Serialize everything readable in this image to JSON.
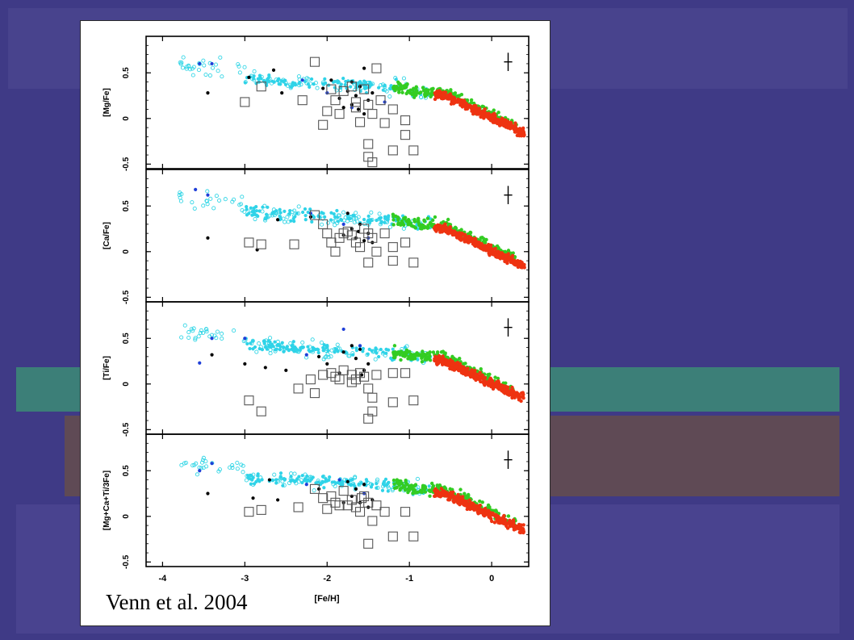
{
  "background_colors": {
    "top": "#4b468e",
    "main": "#3f3a86",
    "teal_band": "#3c7f78",
    "brown_band": "#5f4a55",
    "bottom": "#4a4590"
  },
  "caption": {
    "credit": "Venn et al. 2004"
  },
  "chart_data": {
    "type": "scatter",
    "xlabel": "[Fe/H]",
    "xlim": [
      -4.2,
      0.45
    ],
    "xticks": [
      -4,
      -3,
      -2,
      -1,
      0
    ],
    "xtick_labels": [
      "-4",
      "-3",
      "-2",
      "-1",
      "0"
    ],
    "grid": false,
    "legend": "none",
    "series_colors": {
      "cyan_open": "#33d6e6",
      "cyan_filled": "#2fd3e8",
      "green": "#33cc22",
      "red": "#ee3311",
      "black": "#000000",
      "blue": "#1f3fd8",
      "dwarf_squares": "#555555"
    },
    "panels": [
      {
        "ylabel": "[Mg/Fe]",
        "ylim": [
          -0.55,
          0.9
        ],
        "yticks": [
          -0.5,
          0,
          0.5
        ],
        "ytick_labels": [
          "-0.5",
          "0",
          "0.5"
        ],
        "errorbar": {
          "x": 0.2,
          "y": 0.62,
          "xerr": 0.05,
          "yerr": 0.1
        },
        "dwarf_stars": [
          {
            "x": -3.0,
            "y": 0.18
          },
          {
            "x": -2.8,
            "y": 0.35
          },
          {
            "x": -2.3,
            "y": 0.2
          },
          {
            "x": -2.15,
            "y": 0.62
          },
          {
            "x": -2.05,
            "y": -0.07
          },
          {
            "x": -1.95,
            "y": 0.32
          },
          {
            "x": -1.9,
            "y": 0.2
          },
          {
            "x": -1.85,
            "y": 0.05
          },
          {
            "x": -1.8,
            "y": 0.3
          },
          {
            "x": -1.7,
            "y": 0.35
          },
          {
            "x": -1.65,
            "y": 0.12
          },
          {
            "x": -1.6,
            "y": -0.04
          },
          {
            "x": -1.55,
            "y": 0.32
          },
          {
            "x": -1.5,
            "y": 0.15
          },
          {
            "x": -1.45,
            "y": 0.05
          },
          {
            "x": -1.4,
            "y": 0.55
          },
          {
            "x": -1.35,
            "y": 0.2
          },
          {
            "x": -1.3,
            "y": -0.05
          },
          {
            "x": -1.2,
            "y": 0.1
          },
          {
            "x": -1.05,
            "y": -0.02
          },
          {
            "x": -1.5,
            "y": -0.28
          },
          {
            "x": -1.5,
            "y": -0.42
          },
          {
            "x": -1.2,
            "y": -0.35
          },
          {
            "x": -0.95,
            "y": -0.35
          },
          {
            "x": -1.45,
            "y": -0.48
          },
          {
            "x": -1.05,
            "y": -0.18
          },
          {
            "x": -1.65,
            "y": 0.18
          },
          {
            "x": -2.0,
            "y": 0.08
          }
        ],
        "black_stars": [
          {
            "x": -3.45,
            "y": 0.28
          },
          {
            "x": -2.95,
            "y": 0.45
          },
          {
            "x": -2.65,
            "y": 0.53
          },
          {
            "x": -2.55,
            "y": 0.28
          },
          {
            "x": -2.05,
            "y": 0.33
          },
          {
            "x": -1.95,
            "y": 0.42
          },
          {
            "x": -1.85,
            "y": 0.22
          },
          {
            "x": -1.75,
            "y": 0.3
          },
          {
            "x": -1.7,
            "y": 0.15
          },
          {
            "x": -1.65,
            "y": 0.25
          },
          {
            "x": -1.62,
            "y": 0.1
          },
          {
            "x": -1.6,
            "y": 0.35
          },
          {
            "x": -1.55,
            "y": 0.05
          },
          {
            "x": -1.55,
            "y": 0.55
          },
          {
            "x": -1.5,
            "y": 0.2
          },
          {
            "x": -1.45,
            "y": 0.28
          },
          {
            "x": -1.8,
            "y": 0.12
          },
          {
            "x": -1.7,
            "y": 0.4
          }
        ],
        "blue_stars": [
          {
            "x": -3.55,
            "y": 0.6
          },
          {
            "x": -3.4,
            "y": 0.6
          },
          {
            "x": -2.3,
            "y": 0.42
          },
          {
            "x": -2.0,
            "y": 0.28
          },
          {
            "x": -1.7,
            "y": 0.12
          },
          {
            "x": -1.3,
            "y": 0.18
          }
        ]
      },
      {
        "ylabel": "[Ca/Fe]",
        "ylim": [
          -0.55,
          0.9
        ],
        "yticks": [
          -0.5,
          0,
          0.5
        ],
        "ytick_labels": [
          "-0.5",
          "0",
          "0.5"
        ],
        "errorbar": {
          "x": 0.2,
          "y": 0.62,
          "xerr": 0.05,
          "yerr": 0.1
        },
        "dwarf_stars": [
          {
            "x": -2.95,
            "y": 0.1
          },
          {
            "x": -2.8,
            "y": 0.08
          },
          {
            "x": -2.4,
            "y": 0.08
          },
          {
            "x": -2.15,
            "y": 0.4
          },
          {
            "x": -2.05,
            "y": 0.3
          },
          {
            "x": -2.0,
            "y": 0.2
          },
          {
            "x": -1.95,
            "y": 0.1
          },
          {
            "x": -1.85,
            "y": 0.15
          },
          {
            "x": -1.8,
            "y": 0.2
          },
          {
            "x": -1.7,
            "y": 0.18
          },
          {
            "x": -1.6,
            "y": 0.05
          },
          {
            "x": -1.55,
            "y": 0.25
          },
          {
            "x": -1.5,
            "y": 0.2
          },
          {
            "x": -1.45,
            "y": 0.15
          },
          {
            "x": -1.4,
            "y": 0.0
          },
          {
            "x": -1.3,
            "y": 0.2
          },
          {
            "x": -1.2,
            "y": 0.05
          },
          {
            "x": -1.05,
            "y": 0.1
          },
          {
            "x": -1.5,
            "y": -0.12
          },
          {
            "x": -1.2,
            "y": -0.1
          },
          {
            "x": -0.95,
            "y": -0.12
          },
          {
            "x": -1.9,
            "y": 0.0
          },
          {
            "x": -1.65,
            "y": 0.1
          },
          {
            "x": -1.75,
            "y": 0.22
          }
        ],
        "black_stars": [
          {
            "x": -3.45,
            "y": 0.15
          },
          {
            "x": -2.85,
            "y": 0.02
          },
          {
            "x": -2.6,
            "y": 0.35
          },
          {
            "x": -2.2,
            "y": 0.38
          },
          {
            "x": -1.75,
            "y": 0.42
          },
          {
            "x": -1.7,
            "y": 0.25
          },
          {
            "x": -1.65,
            "y": 0.15
          },
          {
            "x": -1.6,
            "y": 0.3
          },
          {
            "x": -1.55,
            "y": 0.12
          },
          {
            "x": -1.5,
            "y": 0.2
          },
          {
            "x": -1.45,
            "y": 0.1
          },
          {
            "x": -1.8,
            "y": 0.18
          },
          {
            "x": -1.62,
            "y": 0.22
          }
        ],
        "blue_stars": [
          {
            "x": -3.6,
            "y": 0.68
          },
          {
            "x": -3.45,
            "y": 0.62
          },
          {
            "x": -2.2,
            "y": 0.42
          },
          {
            "x": -1.8,
            "y": 0.3
          },
          {
            "x": -1.5,
            "y": 0.15
          }
        ]
      },
      {
        "ylabel": "[Ti/Fe]",
        "ylim": [
          -0.55,
          0.9
        ],
        "yticks": [
          -0.5,
          0,
          0.5
        ],
        "ytick_labels": [
          "-0.5",
          "0",
          "0.5"
        ],
        "errorbar": {
          "x": 0.2,
          "y": 0.62,
          "xerr": 0.05,
          "yerr": 0.1
        },
        "dwarf_stars": [
          {
            "x": -2.95,
            "y": -0.18
          },
          {
            "x": -2.8,
            "y": -0.3
          },
          {
            "x": -2.35,
            "y": -0.05
          },
          {
            "x": -2.2,
            "y": 0.05
          },
          {
            "x": -2.15,
            "y": -0.1
          },
          {
            "x": -2.05,
            "y": 0.1
          },
          {
            "x": -1.95,
            "y": 0.12
          },
          {
            "x": -1.9,
            "y": 0.08
          },
          {
            "x": -1.8,
            "y": 0.15
          },
          {
            "x": -1.7,
            "y": 0.1
          },
          {
            "x": -1.65,
            "y": 0.05
          },
          {
            "x": -1.6,
            "y": 0.12
          },
          {
            "x": -1.55,
            "y": 0.08
          },
          {
            "x": -1.5,
            "y": -0.05
          },
          {
            "x": -1.45,
            "y": -0.15
          },
          {
            "x": -1.45,
            "y": -0.3
          },
          {
            "x": -1.4,
            "y": 0.1
          },
          {
            "x": -1.2,
            "y": 0.12
          },
          {
            "x": -1.2,
            "y": -0.2
          },
          {
            "x": -1.05,
            "y": 0.12
          },
          {
            "x": -0.95,
            "y": -0.18
          },
          {
            "x": -1.5,
            "y": -0.38
          },
          {
            "x": -1.7,
            "y": 0.02
          },
          {
            "x": -1.85,
            "y": 0.05
          }
        ],
        "black_stars": [
          {
            "x": -3.4,
            "y": 0.32
          },
          {
            "x": -3.0,
            "y": 0.22
          },
          {
            "x": -2.75,
            "y": 0.18
          },
          {
            "x": -2.5,
            "y": 0.15
          },
          {
            "x": -2.1,
            "y": 0.3
          },
          {
            "x": -2.0,
            "y": 0.22
          },
          {
            "x": -1.8,
            "y": 0.35
          },
          {
            "x": -1.7,
            "y": 0.42
          },
          {
            "x": -1.65,
            "y": 0.28
          },
          {
            "x": -1.6,
            "y": 0.38
          },
          {
            "x": -1.55,
            "y": 0.15
          },
          {
            "x": -1.5,
            "y": 0.22
          },
          {
            "x": -1.58,
            "y": 0.1
          },
          {
            "x": -1.85,
            "y": 0.12
          }
        ],
        "blue_stars": [
          {
            "x": -3.55,
            "y": 0.23
          },
          {
            "x": -3.4,
            "y": 0.5
          },
          {
            "x": -3.0,
            "y": 0.5
          },
          {
            "x": -2.25,
            "y": 0.32
          },
          {
            "x": -1.8,
            "y": 0.6
          },
          {
            "x": -1.6,
            "y": 0.42
          }
        ]
      },
      {
        "ylabel": "[Mg+Ca+Ti/3Fe]",
        "ylim": [
          -0.55,
          0.9
        ],
        "yticks": [
          -0.5,
          0,
          0.5
        ],
        "ytick_labels": [
          "-0.5",
          "0",
          "0.5"
        ],
        "errorbar": {
          "x": 0.2,
          "y": 0.62,
          "xerr": 0.05,
          "yerr": 0.1
        },
        "dwarf_stars": [
          {
            "x": -2.95,
            "y": 0.05
          },
          {
            "x": -2.8,
            "y": 0.07
          },
          {
            "x": -2.35,
            "y": 0.1
          },
          {
            "x": -2.15,
            "y": 0.3
          },
          {
            "x": -2.05,
            "y": 0.2
          },
          {
            "x": -2.0,
            "y": 0.08
          },
          {
            "x": -1.95,
            "y": 0.22
          },
          {
            "x": -1.9,
            "y": 0.15
          },
          {
            "x": -1.85,
            "y": 0.12
          },
          {
            "x": -1.8,
            "y": 0.28
          },
          {
            "x": -1.7,
            "y": 0.18
          },
          {
            "x": -1.65,
            "y": 0.1
          },
          {
            "x": -1.6,
            "y": 0.05
          },
          {
            "x": -1.55,
            "y": 0.22
          },
          {
            "x": -1.5,
            "y": 0.15
          },
          {
            "x": -1.45,
            "y": -0.05
          },
          {
            "x": -1.4,
            "y": 0.12
          },
          {
            "x": -1.3,
            "y": 0.05
          },
          {
            "x": -1.2,
            "y": -0.22
          },
          {
            "x": -1.05,
            "y": 0.05
          },
          {
            "x": -0.95,
            "y": -0.22
          },
          {
            "x": -1.5,
            "y": -0.3
          },
          {
            "x": -1.75,
            "y": 0.12
          },
          {
            "x": -1.58,
            "y": 0.2
          }
        ],
        "black_stars": [
          {
            "x": -3.45,
            "y": 0.25
          },
          {
            "x": -2.9,
            "y": 0.2
          },
          {
            "x": -2.7,
            "y": 0.4
          },
          {
            "x": -2.6,
            "y": 0.18
          },
          {
            "x": -2.1,
            "y": 0.3
          },
          {
            "x": -1.75,
            "y": 0.38
          },
          {
            "x": -1.7,
            "y": 0.22
          },
          {
            "x": -1.65,
            "y": 0.3
          },
          {
            "x": -1.6,
            "y": 0.15
          },
          {
            "x": -1.55,
            "y": 0.35
          },
          {
            "x": -1.5,
            "y": 0.1
          },
          {
            "x": -1.45,
            "y": 0.18
          },
          {
            "x": -1.8,
            "y": 0.15
          }
        ],
        "blue_stars": [
          {
            "x": -3.55,
            "y": 0.5
          },
          {
            "x": -3.4,
            "y": 0.58
          },
          {
            "x": -2.25,
            "y": 0.35
          },
          {
            "x": -1.85,
            "y": 0.4
          },
          {
            "x": -1.55,
            "y": 0.25
          }
        ]
      }
    ]
  }
}
